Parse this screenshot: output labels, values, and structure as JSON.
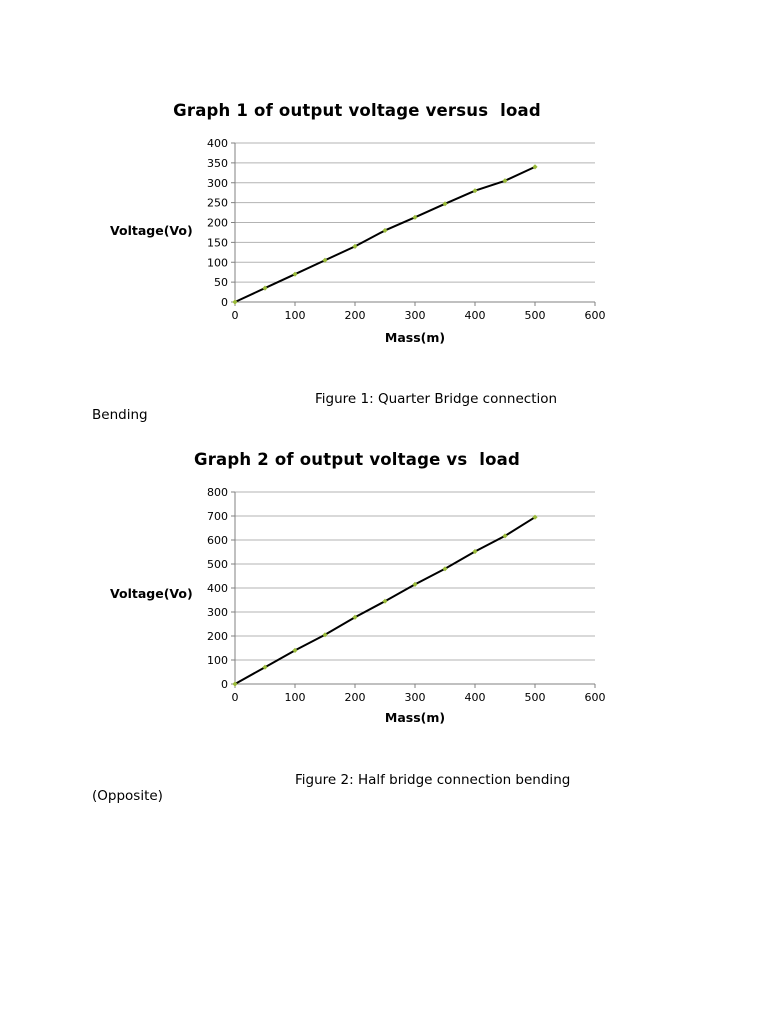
{
  "figures": [
    {
      "title": "Graph 1 of output voltage versus  load",
      "ylabel": "Voltage(Vo)",
      "xlabel": "Mass(m)",
      "caption_main": "Figure 1: Quarter Bridge connection",
      "caption_second": "Bending"
    },
    {
      "title": "Graph 2 of output voltage vs  load",
      "ylabel": "Voltage(Vo)",
      "xlabel": "Mass(m)",
      "caption_main": "Figure 2: Half bridge connection bending",
      "caption_second": "(Opposite)"
    }
  ],
  "chart_data": [
    {
      "type": "line",
      "title": "Graph 1 of output voltage versus  load",
      "xlabel": "Mass(m)",
      "ylabel": "Voltage(Vo)",
      "x": [
        0,
        50,
        100,
        150,
        200,
        250,
        300,
        350,
        400,
        450,
        500
      ],
      "y": [
        0,
        35,
        70,
        105,
        140,
        180,
        213,
        247,
        280,
        305,
        340
      ],
      "xlim": [
        0,
        600
      ],
      "ylim": [
        0,
        400
      ],
      "xticks": [
        0,
        100,
        200,
        300,
        400,
        500,
        600
      ],
      "yticks": [
        0,
        50,
        100,
        150,
        200,
        250,
        300,
        350,
        400
      ],
      "grid": "horizontal",
      "legend": "none",
      "line_color": "#000000",
      "marker_color": "#9bbb3a",
      "grid_color": "#b3b3b3",
      "axis_color": "#808080"
    },
    {
      "type": "line",
      "title": "Graph 2 of output voltage vs  load",
      "xlabel": "Mass(m)",
      "ylabel": "Voltage(Vo)",
      "x": [
        0,
        50,
        100,
        150,
        200,
        250,
        300,
        350,
        400,
        450,
        500
      ],
      "y": [
        0,
        70,
        140,
        205,
        278,
        345,
        415,
        480,
        552,
        617,
        695
      ],
      "xlim": [
        0,
        600
      ],
      "ylim": [
        0,
        800
      ],
      "xticks": [
        0,
        100,
        200,
        300,
        400,
        500,
        600
      ],
      "yticks": [
        0,
        100,
        200,
        300,
        400,
        500,
        600,
        700,
        800
      ],
      "grid": "horizontal",
      "legend": "none",
      "line_color": "#000000",
      "marker_color": "#9bbb3a",
      "grid_color": "#b3b3b3",
      "axis_color": "#808080"
    }
  ]
}
